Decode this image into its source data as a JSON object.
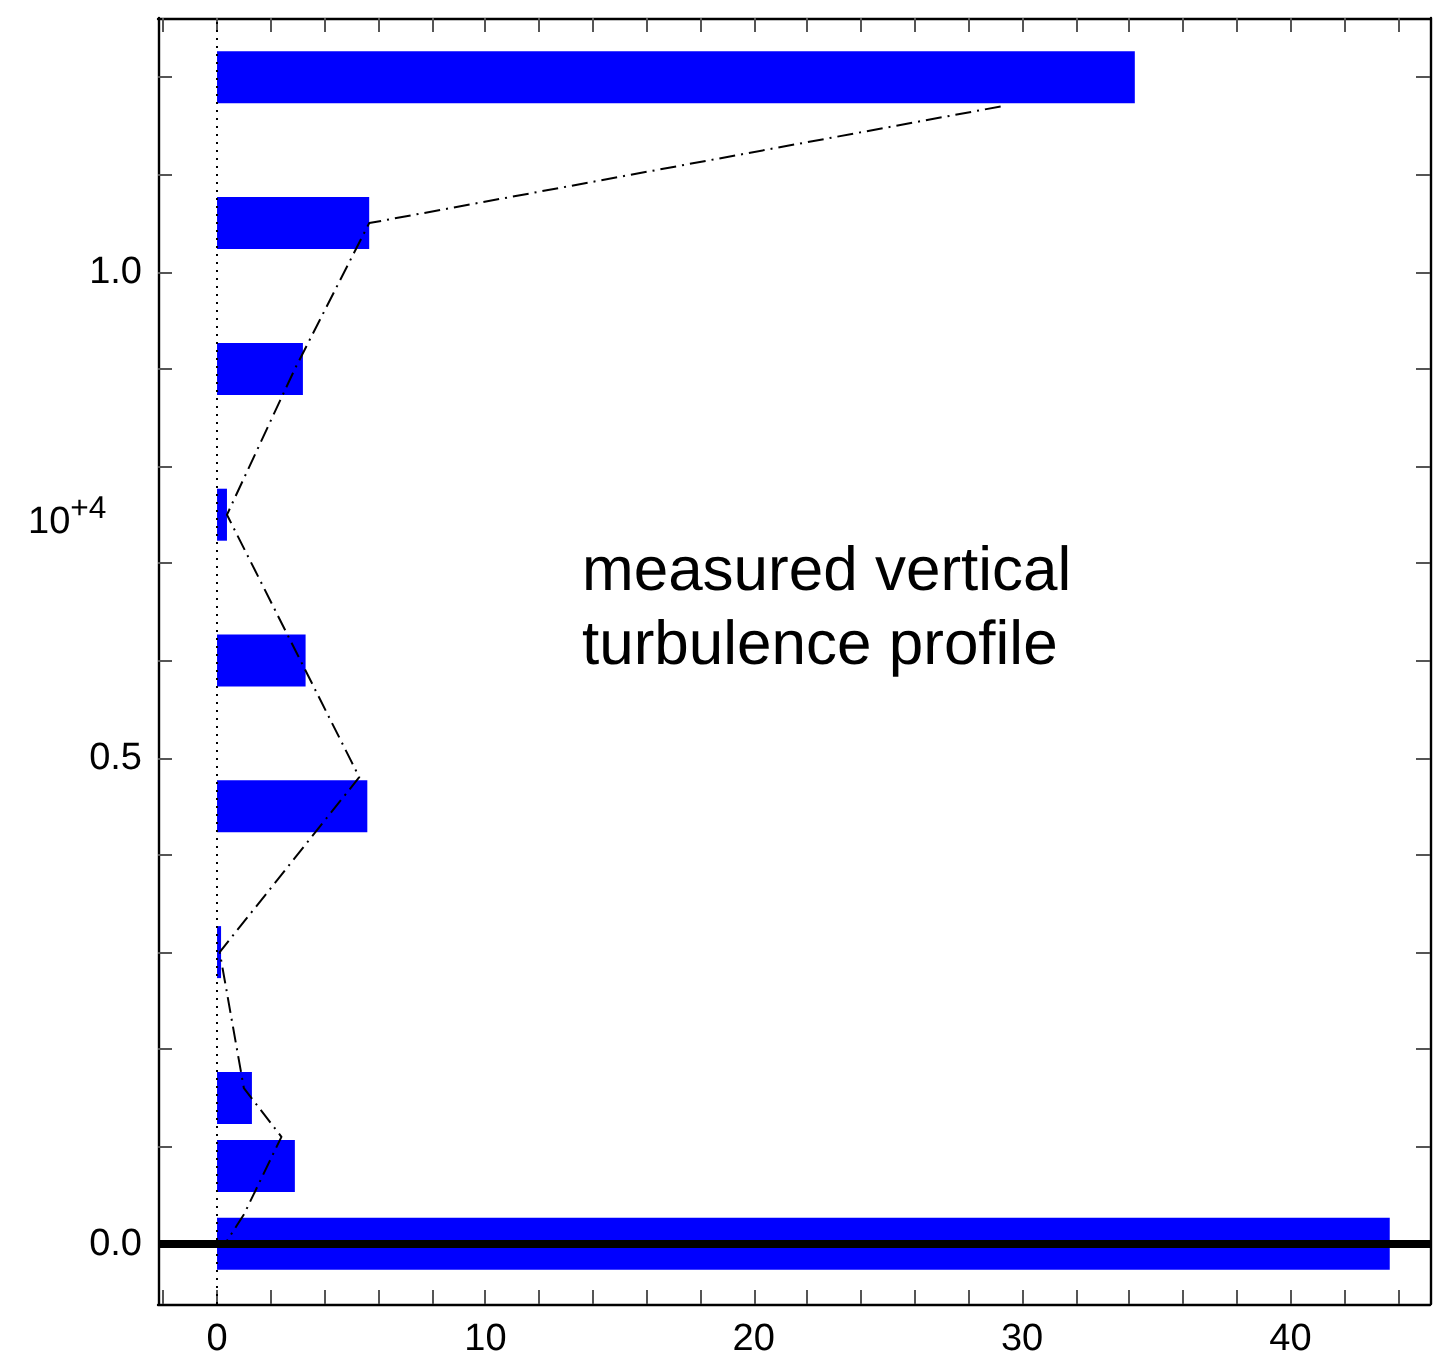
{
  "chart_data": {
    "type": "bar",
    "orientation": "horizontal",
    "ylabel": "10$^{+4}$",
    "annotations": [
      "measured vertical\nturbulence profile"
    ],
    "series": [
      {
        "color": "#0000ff",
        "x": [
          1.2,
          1.05,
          0.9,
          0.75,
          0.6,
          0.45,
          0.3,
          0.15,
          0.08,
          0.0
        ],
        "values": [
          34.2,
          5.67,
          3.2,
          0.37,
          3.3,
          5.6,
          0.15,
          1.3,
          2.9,
          43.7
        ]
      },
      {
        "type": "line",
        "color": "#000000",
        "line_style": "dashdot",
        "marker": "none",
        "x": [
          1.17,
          1.05,
          0.9,
          0.75,
          0.48,
          0.3,
          0.16,
          0.11,
          0.03,
          0.0
        ],
        "values": [
          29.2,
          5.67,
          2.9,
          0.37,
          5.3,
          0.1,
          1.0,
          2.4,
          1.0,
          0.3
        ]
      }
    ],
    "xlim": [
      -2.2,
      45.2
    ],
    "xticks": [
      {
        "value": -2,
        "label": null
      },
      0,
      {
        "value": 2,
        "label": null
      },
      {
        "value": 4,
        "label": null
      },
      {
        "value": 6,
        "label": null
      },
      {
        "value": 8,
        "label": null
      },
      10,
      {
        "value": 12,
        "label": null
      },
      {
        "value": 14,
        "label": null
      },
      {
        "value": 16,
        "label": null
      },
      {
        "value": 18,
        "label": null
      },
      20,
      {
        "value": 22,
        "label": null
      },
      {
        "value": 24,
        "label": null
      },
      {
        "value": 26,
        "label": null
      },
      {
        "value": 28,
        "label": null
      },
      30,
      {
        "value": 32,
        "label": null
      },
      {
        "value": 34,
        "label": null
      },
      {
        "value": 36,
        "label": null
      },
      {
        "value": 38,
        "label": null
      },
      40,
      {
        "value": 42,
        "label": null
      },
      {
        "value": 44,
        "label": null
      }
    ],
    "ylim": [
      -0.062,
      1.261
    ],
    "yticks": [
      {
        "value": 0,
        "label": "0.0"
      },
      {
        "value": 0.1,
        "label": null
      },
      {
        "value": 0.2,
        "label": null
      },
      {
        "value": 0.3,
        "label": null
      },
      {
        "value": 0.4,
        "label": null
      },
      {
        "value": 0.5,
        "label": "0.5"
      },
      {
        "value": 0.6,
        "label": null
      },
      {
        "value": 0.7,
        "label": null
      },
      {
        "value": 0.8,
        "label": null
      },
      {
        "value": 0.9,
        "label": null
      },
      {
        "value": 1.0,
        "label": "1.0"
      },
      {
        "value": 1.1,
        "label": null
      },
      {
        "value": 1.2,
        "label": null
      }
    ],
    "ref_lines": [
      {
        "axis": "y",
        "value": 0,
        "color": "#000000",
        "line_style": "solid"
      },
      {
        "axis": "x",
        "value": 0,
        "color": "#000000",
        "line_style": "dotted"
      }
    ]
  }
}
